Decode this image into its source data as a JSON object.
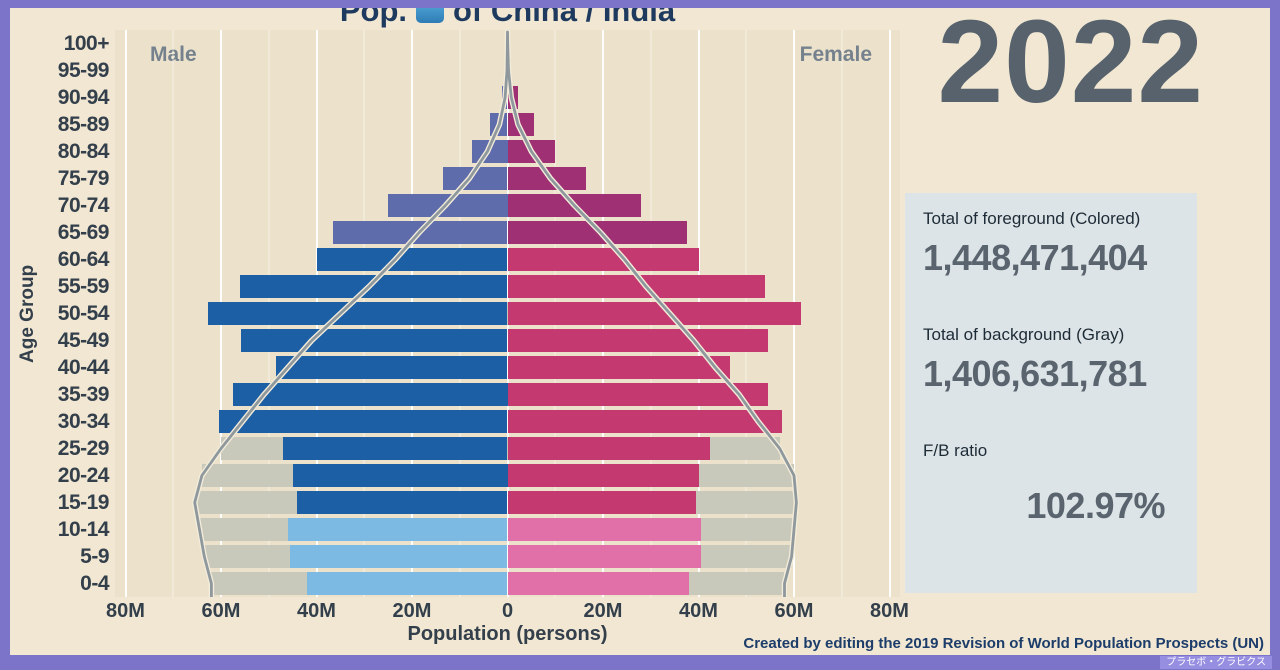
{
  "title": {
    "prefix": "Pop.",
    "suffix": "of China / India",
    "full": "Pop. [map-emoji] of China / India"
  },
  "year": "2022",
  "stats": {
    "foreground_label": "Total of foreground (Colored)",
    "foreground_value": "1,448,471,404",
    "background_label": "Total of background (Gray)",
    "background_value": "1,406,631,781",
    "ratio_label": "F/B ratio",
    "ratio_value": "102.97%"
  },
  "credit": "Created by editing the 2019 Revision of World Population Prospects (UN)",
  "brand_tag": "プラセボ・グラビクス",
  "chart_data": {
    "type": "bar",
    "subtype": "population-pyramid",
    "title": "Pop. of China / India",
    "xlabel": "Population (persons)",
    "ylabel": "Age Group",
    "left_header": "Male",
    "right_header": "Female",
    "units": "millions of persons",
    "xlim": [
      -80,
      80
    ],
    "grid": true,
    "x_ticks": [
      {
        "value": -80,
        "label": "80M"
      },
      {
        "value": -60,
        "label": "60M"
      },
      {
        "value": -40,
        "label": "40M"
      },
      {
        "value": -20,
        "label": "20M"
      },
      {
        "value": 0,
        "label": "0"
      },
      {
        "value": 20,
        "label": "20M"
      },
      {
        "value": 40,
        "label": "40M"
      },
      {
        "value": 60,
        "label": "60M"
      },
      {
        "value": 80,
        "label": "80M"
      }
    ],
    "age_groups": [
      "100+",
      "95-99",
      "90-94",
      "85-89",
      "80-84",
      "75-79",
      "70-74",
      "65-69",
      "60-64",
      "55-59",
      "50-54",
      "45-49",
      "40-44",
      "35-39",
      "30-34",
      "25-29",
      "20-24",
      "15-19",
      "10-14",
      "5-9",
      "0-4"
    ],
    "series": [
      {
        "name": "foreground-male",
        "values": [
          0.06,
          0.3,
          1.2,
          3.6,
          7.5,
          13.5,
          25,
          36.5,
          39.8,
          56,
          62.8,
          55.8,
          48.5,
          57.5,
          60.5,
          47,
          45,
          44,
          46,
          45.5,
          42
        ]
      },
      {
        "name": "foreground-female",
        "values": [
          0.15,
          0.7,
          2.2,
          5.5,
          10,
          16.5,
          28,
          37.5,
          40,
          54,
          61.5,
          54.5,
          46.5,
          54.5,
          57.5,
          42.5,
          40,
          39.5,
          40.5,
          40.5,
          38
        ]
      },
      {
        "name": "background-male",
        "values": [
          0.02,
          0.1,
          0.5,
          1.7,
          4.2,
          8,
          13,
          18.5,
          23.5,
          29,
          35,
          41,
          46,
          51,
          55.5,
          60,
          64,
          65.5,
          64.5,
          63.5,
          62
        ]
      },
      {
        "name": "background-female",
        "values": [
          0.04,
          0.2,
          0.8,
          2.2,
          5,
          9,
          14,
          19.5,
          24.5,
          29,
          34,
          39,
          43.5,
          48.5,
          52.5,
          57,
          60,
          60.5,
          60,
          59.5,
          58
        ]
      }
    ],
    "colors": {
      "male_young": "#7cbae3",
      "male_adult": "#1d5fa5",
      "male_senior": "#5e6cab",
      "female_young": "#e170a8",
      "female_adult": "#c43a70",
      "female_senior": "#a03074",
      "background": "#c9c9bb",
      "outline": "#8e989d",
      "outline_halo": "#f3ecda"
    },
    "tiers": {
      "senior_max_index": 7,
      "young_min_index": 18
    }
  }
}
